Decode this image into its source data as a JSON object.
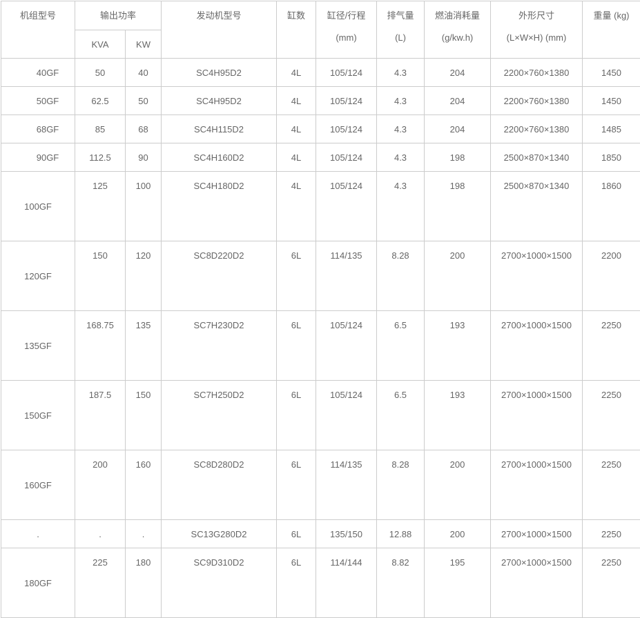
{
  "header": {
    "model": "机组型号",
    "output_power": "输出功率",
    "kva": "KVA",
    "kw": "KW",
    "engine_model": "发动机型号",
    "cylinders": "缸数",
    "bore_stroke": "缸径/行程",
    "bore_stroke_unit": "(mm)",
    "displacement": "排气量",
    "displacement_unit": "(L)",
    "fuel_consumption": "燃油消耗量",
    "fuel_consumption_unit": "(g/kw.h)",
    "dimensions": "外形尺寸",
    "dimensions_unit": "(L×W×H) (mm)",
    "weight": "重量 (kg)"
  },
  "rows": [
    {
      "model": "40GF",
      "kva": "50",
      "kw": "40",
      "engine": "SC4H95D2",
      "cyl": "4L",
      "bore": "105/124",
      "disp": "4.3",
      "fuel": "204",
      "dims": "2200×760×1380",
      "weight": "1450",
      "tall": false
    },
    {
      "model": "50GF",
      "kva": "62.5",
      "kw": "50",
      "engine": "SC4H95D2",
      "cyl": "4L",
      "bore": "105/124",
      "disp": "4.3",
      "fuel": "204",
      "dims": "2200×760×1380",
      "weight": "1450",
      "tall": false
    },
    {
      "model": "68GF",
      "kva": "85",
      "kw": "68",
      "engine": "SC4H115D2",
      "cyl": "4L",
      "bore": "105/124",
      "disp": "4.3",
      "fuel": "204",
      "dims": "2200×760×1380",
      "weight": "1485",
      "tall": false
    },
    {
      "model": "90GF",
      "kva": "112.5",
      "kw": "90",
      "engine": "SC4H160D2",
      "cyl": "4L",
      "bore": "105/124",
      "disp": "4.3",
      "fuel": "198",
      "dims": "2500×870×1340",
      "weight": "1850",
      "tall": false
    },
    {
      "model": "100GF",
      "kva": "125",
      "kw": "100",
      "engine": "SC4H180D2",
      "cyl": "4L",
      "bore": "105/124",
      "disp": "4.3",
      "fuel": "198",
      "dims": "2500×870×1340",
      "weight": "1860",
      "tall": true
    },
    {
      "model": "120GF",
      "kva": "150",
      "kw": "120",
      "engine": "SC8D220D2",
      "cyl": "6L",
      "bore": "114/135",
      "disp": "8.28",
      "fuel": "200",
      "dims": "2700×1000×1500",
      "weight": "2200",
      "tall": true
    },
    {
      "model": "135GF",
      "kva": "168.75",
      "kw": "135",
      "engine": "SC7H230D2",
      "cyl": "6L",
      "bore": "105/124",
      "disp": "6.5",
      "fuel": "193",
      "dims": "2700×1000×1500",
      "weight": "2250",
      "tall": true
    },
    {
      "model": "150GF",
      "kva": "187.5",
      "kw": "150",
      "engine": "SC7H250D2",
      "cyl": "6L",
      "bore": "105/124",
      "disp": "6.5",
      "fuel": "193",
      "dims": "2700×1000×1500",
      "weight": "2250",
      "tall": true
    },
    {
      "model": "160GF",
      "kva": "200",
      "kw": "160",
      "engine": "SC8D280D2",
      "cyl": "6L",
      "bore": "114/135",
      "disp": "8.28",
      "fuel": "200",
      "dims": "2700×1000×1500",
      "weight": "2250",
      "tall": true
    },
    {
      "model": ".",
      "kva": ".",
      "kw": ".",
      "engine": "SC13G280D2",
      "cyl": "6L",
      "bore": "135/150",
      "disp": "12.88",
      "fuel": "200",
      "dims": "2700×1000×1500",
      "weight": "2250",
      "tall": false,
      "dot": true
    },
    {
      "model": "180GF",
      "kva": "225",
      "kw": "180",
      "engine": "SC9D310D2",
      "cyl": "6L",
      "bore": "114/144",
      "disp": "8.82",
      "fuel": "195",
      "dims": "2700×1000×1500",
      "weight": "2250",
      "tall": true
    }
  ]
}
